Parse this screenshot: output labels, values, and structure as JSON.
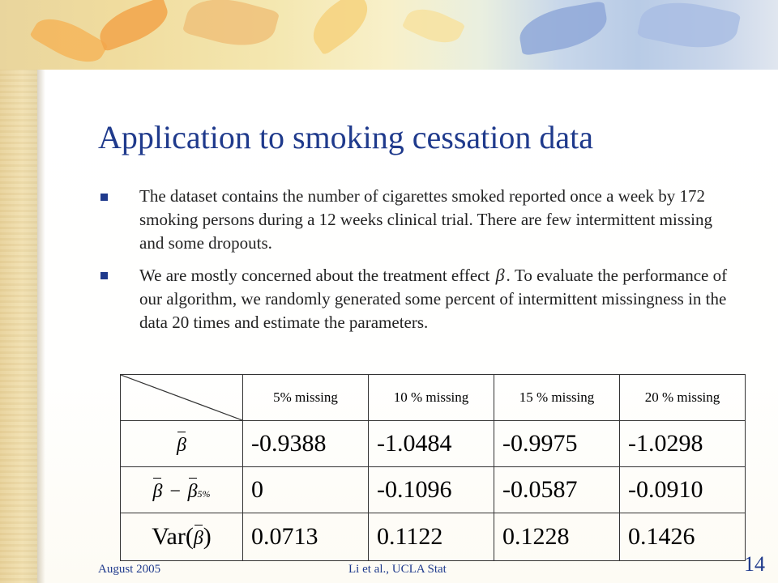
{
  "slide": {
    "title": "Application to smoking cessation data",
    "bullets": [
      "The dataset contains the number of cigarettes smoked reported once a week by 172 smoking persons during a 12 weeks clinical trial. There are few intermittent missing and some dropouts.",
      {
        "before": "We are mostly concerned about the treatment effect ",
        "symbol": "β",
        "after": ". To evaluate the performance of our algorithm, we randomly generated some percent of intermittent missingness in the data 20 times and estimate the parameters."
      }
    ],
    "table": {
      "headers": [
        "5% missing",
        "10 % missing",
        "15 % missing",
        "20 % missing"
      ],
      "rows": [
        {
          "label_symbol": "β",
          "values": [
            "-0.9388",
            "-1.0484",
            "-0.9975",
            "-1.0298"
          ]
        },
        {
          "label_symbol": "β",
          "label_minus": "−",
          "label_sub": "5%",
          "values": [
            "0",
            "-0.1096",
            "-0.0587",
            "-0.0910"
          ]
        },
        {
          "label_prefix": "Var(",
          "label_symbol": "β",
          "label_suffix": ")",
          "values": [
            "0.0713",
            "0.1122",
            "0.1228",
            "0.1426"
          ]
        }
      ]
    },
    "footer": {
      "date": "August 2005",
      "citation": "Li  et al., UCLA Stat",
      "page_number": "14"
    }
  },
  "colors": {
    "title": "#1f3a8c",
    "bullet_marker": "#1f3a8c",
    "footer": "#1f3a8c",
    "background": "#f3e7c4"
  }
}
